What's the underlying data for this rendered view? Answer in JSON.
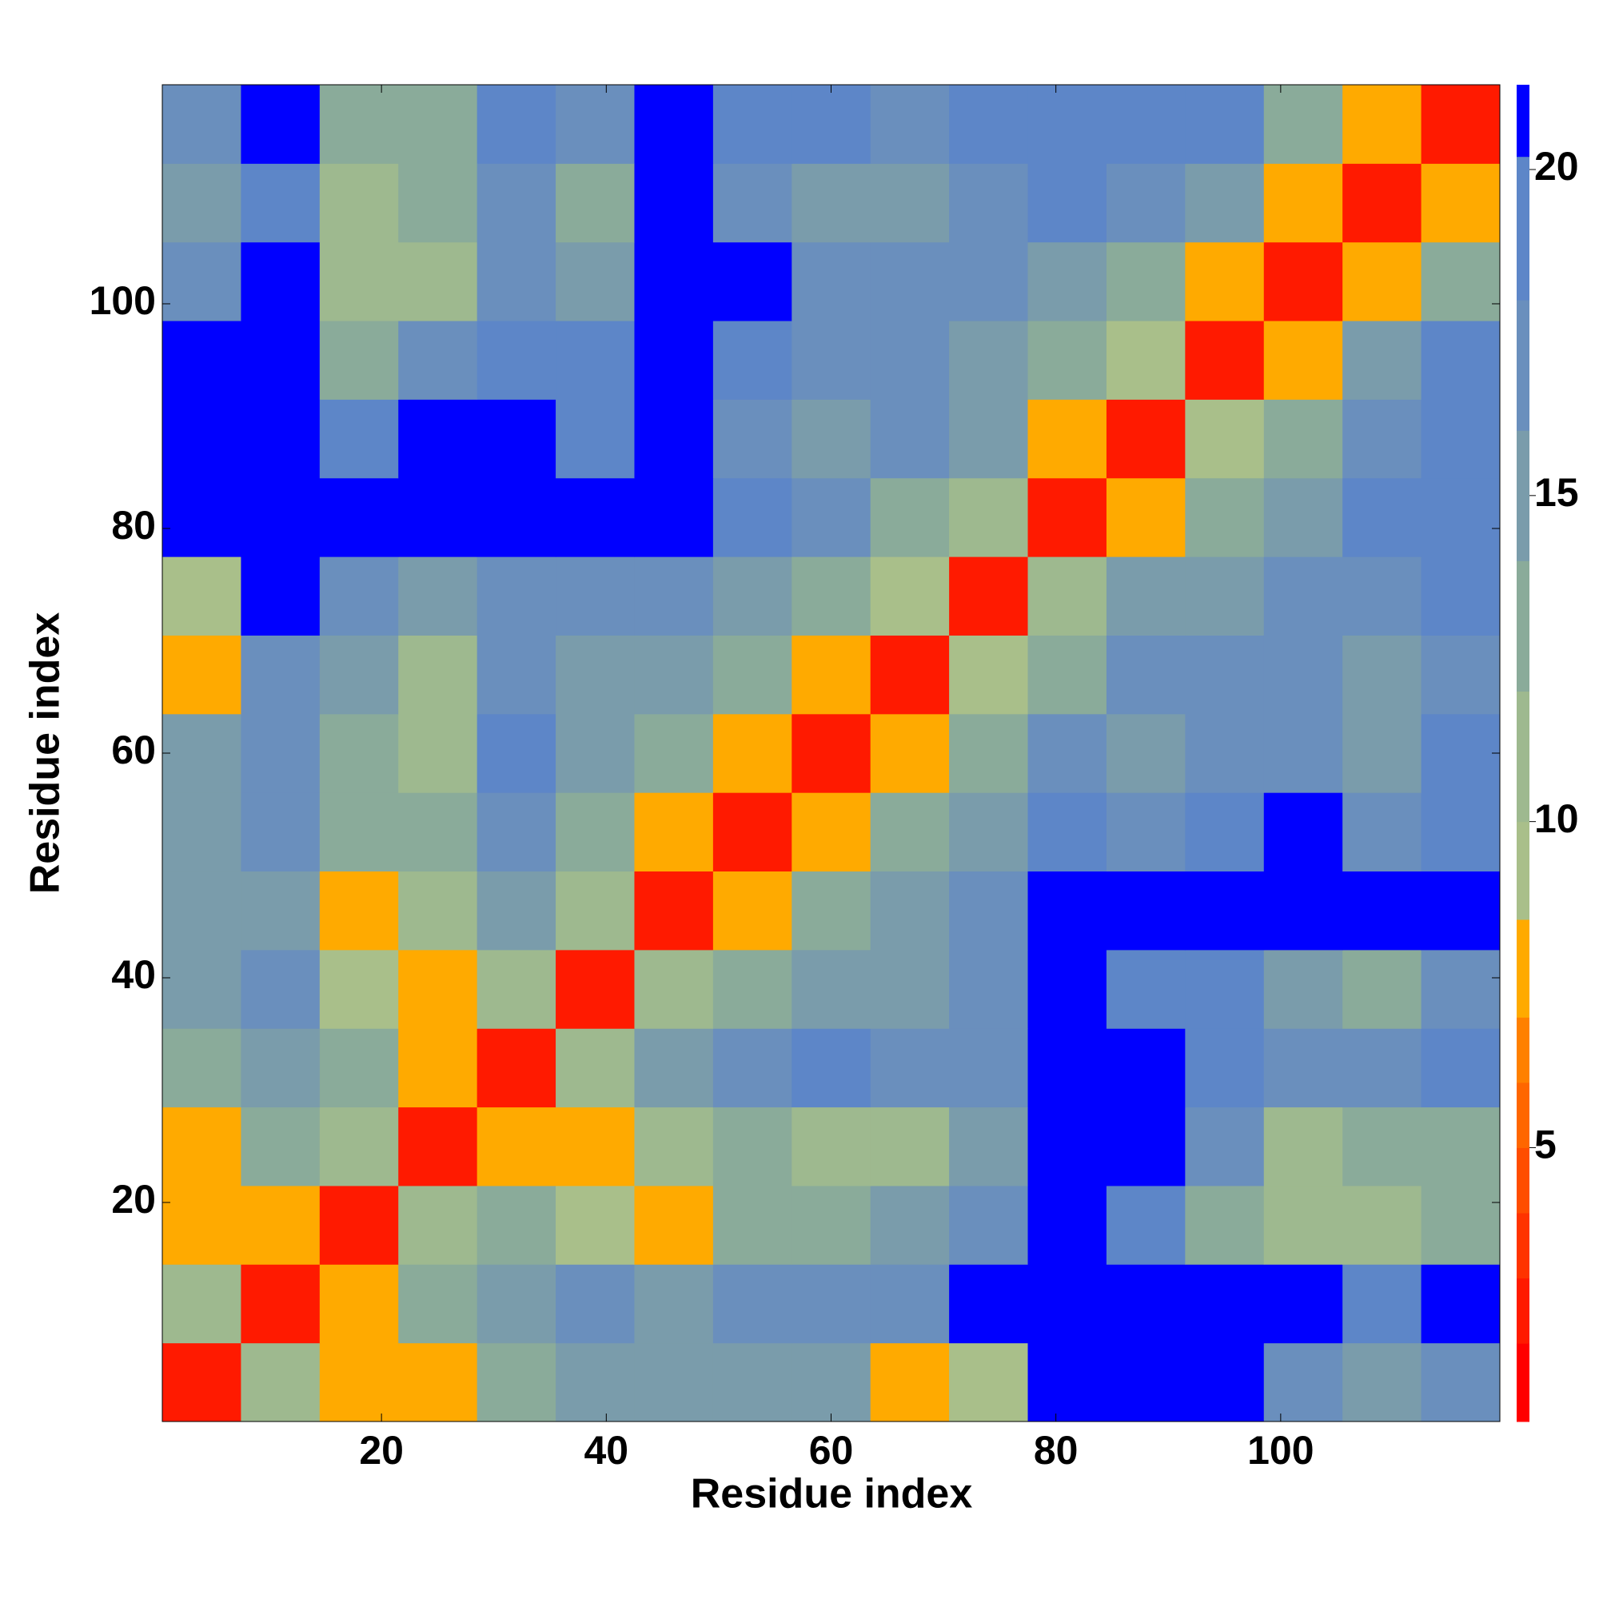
{
  "chart_data": {
    "type": "heatmap",
    "xlabel": "Residue index",
    "ylabel": "Residue index",
    "x_edges": [
      0.5,
      7.5,
      14.5,
      21.5,
      28.5,
      35.5,
      42.5,
      49.5,
      56.5,
      63.5,
      70.5,
      77.5,
      84.5,
      91.5,
      98.5,
      105.5,
      112.5,
      119.5
    ],
    "y_edges": [
      0.5,
      7.5,
      14.5,
      21.5,
      28.5,
      35.5,
      42.5,
      49.5,
      56.5,
      63.5,
      70.5,
      77.5,
      84.5,
      91.5,
      98.5,
      105.5,
      112.5,
      119.5
    ],
    "xlim": [
      0.5,
      119.5
    ],
    "ylim": [
      0.5,
      119.5
    ],
    "xticks": [
      20,
      40,
      60,
      80,
      100
    ],
    "yticks": [
      20,
      40,
      60,
      80,
      100
    ],
    "z": [
      [
        2,
        11,
        8,
        7,
        13,
        14,
        14,
        15,
        14,
        8,
        9,
        21,
        21,
        21,
        16,
        14,
        16
      ],
      [
        11,
        2,
        7,
        12,
        14,
        17,
        15,
        16,
        16,
        16,
        21,
        21,
        21,
        21,
        21,
        19,
        21
      ],
      [
        8,
        7,
        2,
        11,
        12,
        9,
        7,
        13,
        12,
        14,
        17,
        21,
        18,
        13,
        10,
        11,
        12
      ],
      [
        7,
        12,
        11,
        2,
        7,
        7,
        11,
        13,
        10,
        11,
        15,
        21,
        21,
        16,
        10,
        12,
        13
      ],
      [
        13,
        14,
        12,
        7,
        2,
        11,
        15,
        17,
        18,
        16,
        17,
        21,
        21,
        19,
        16,
        17,
        18
      ],
      [
        14,
        17,
        9,
        7,
        11,
        2,
        10,
        13,
        14,
        15,
        16,
        21,
        20,
        19,
        14,
        12,
        16
      ],
      [
        14,
        15,
        7,
        11,
        15,
        10,
        2,
        8,
        12,
        14,
        17,
        21,
        21,
        21,
        21,
        21,
        21
      ],
      [
        15,
        16,
        13,
        13,
        17,
        13,
        8,
        2,
        8,
        12,
        15,
        18,
        17,
        20,
        21,
        17,
        20
      ],
      [
        14,
        16,
        12,
        10,
        18,
        14,
        12,
        8,
        2,
        8,
        13,
        16,
        15,
        17,
        16,
        15,
        19
      ],
      [
        8,
        16,
        14,
        11,
        16,
        15,
        14,
        12,
        8,
        2,
        9,
        13,
        16,
        17,
        16,
        15,
        16
      ],
      [
        9,
        21,
        17,
        15,
        17,
        16,
        17,
        15,
        13,
        9,
        2,
        10,
        14,
        15,
        16,
        16,
        18
      ],
      [
        21,
        21,
        21,
        21,
        21,
        21,
        21,
        18,
        16,
        13,
        10,
        2,
        8,
        13,
        15,
        18,
        20
      ],
      [
        21,
        21,
        18,
        21,
        21,
        20,
        21,
        17,
        15,
        16,
        14,
        8,
        2,
        9,
        13,
        17,
        20
      ],
      [
        21,
        21,
        13,
        16,
        19,
        19,
        21,
        20,
        17,
        17,
        15,
        13,
        9,
        2,
        8,
        14,
        19
      ],
      [
        16,
        21,
        10,
        10,
        16,
        14,
        21,
        21,
        16,
        16,
        16,
        15,
        13,
        8,
        2,
        8,
        13
      ],
      [
        14,
        19,
        11,
        12,
        17,
        12,
        21,
        17,
        15,
        15,
        16,
        18,
        17,
        14,
        8,
        2,
        8
      ],
      [
        16,
        21,
        12,
        13,
        18,
        16,
        21,
        20,
        19,
        16,
        18,
        20,
        20,
        19,
        13,
        8,
        2
      ]
    ],
    "colorbar": {
      "lim": [
        0.8,
        21.3
      ],
      "ticks": [
        5,
        10,
        15,
        20
      ],
      "levels": [
        0.8,
        2,
        3,
        4,
        5,
        6,
        7,
        8.5,
        10,
        12,
        14,
        16,
        18,
        20.2,
        21.3
      ],
      "colors": [
        "#ff0000",
        "#ff1a00",
        "#ff3300",
        "#ff4d00",
        "#ff6600",
        "#ff8000",
        "#ffaa00",
        "#a9bf8a",
        "#9eb98f",
        "#8aab9a",
        "#7a9cab",
        "#6a8fbd",
        "#5d86c8",
        "#0000ff"
      ]
    }
  }
}
